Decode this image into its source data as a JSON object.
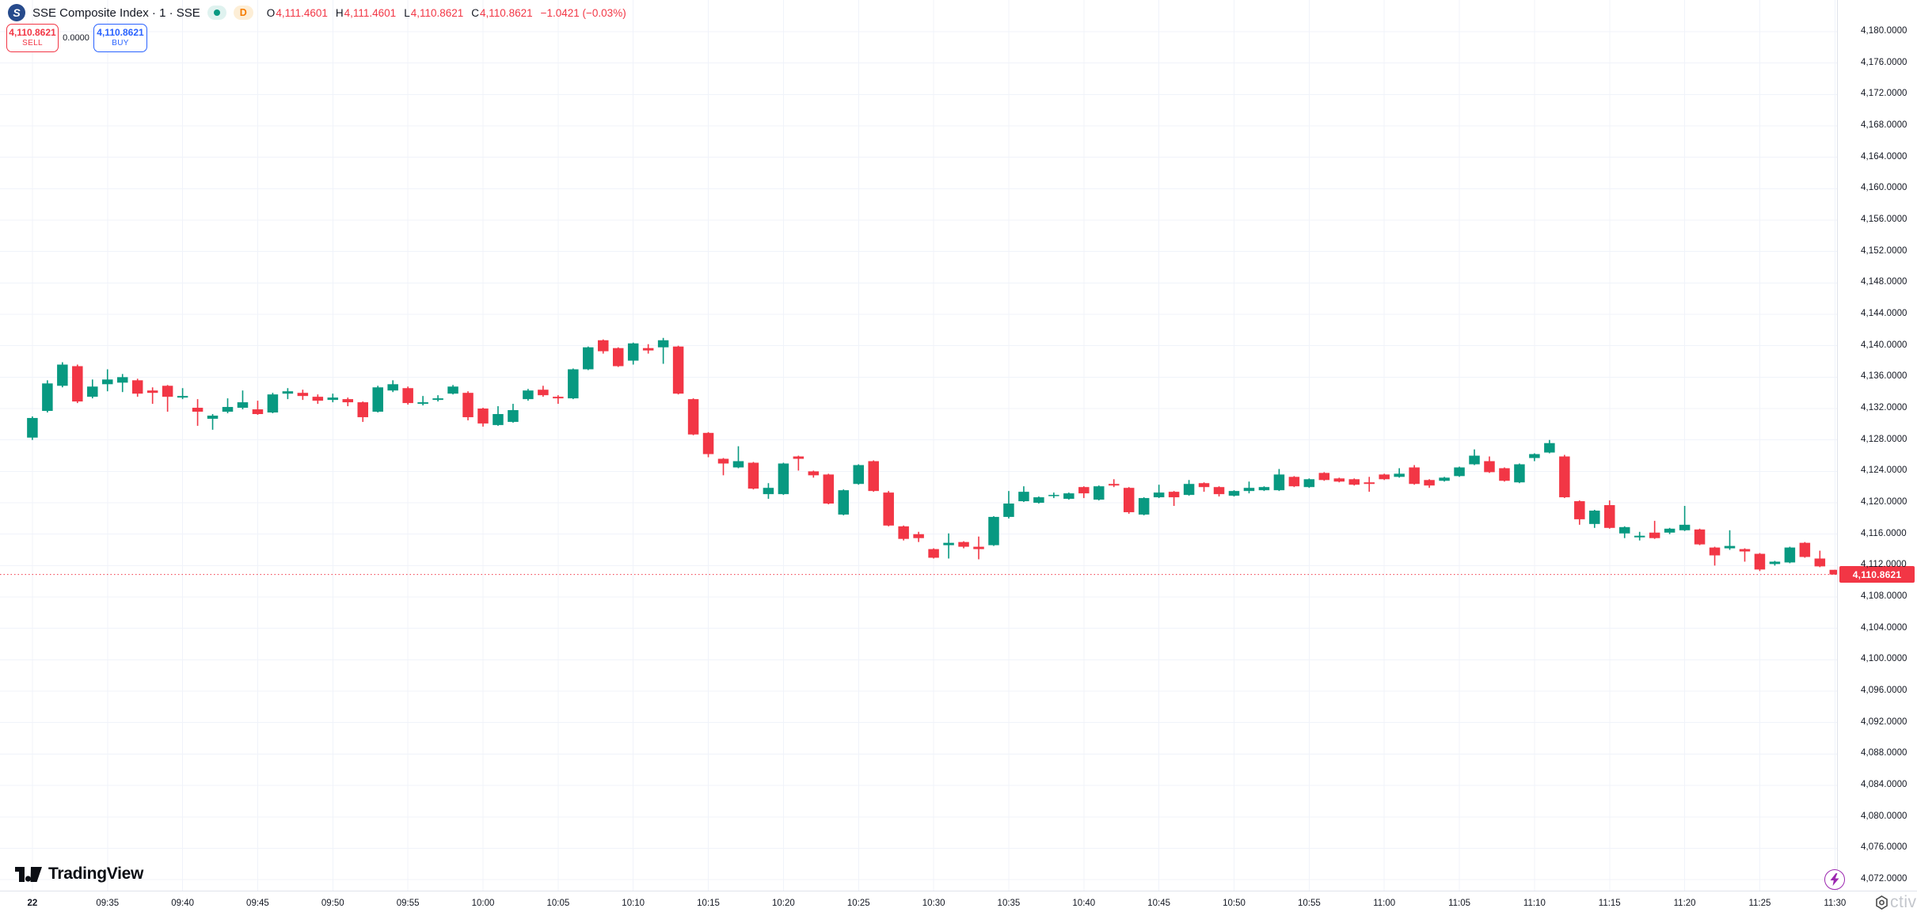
{
  "header": {
    "symbol_title": "SSE Composite Index · 1 · SSE",
    "logo_letter": "S",
    "timeframe_badge": "D",
    "ohlc": {
      "o_label": "O",
      "o_value": "4,111.4601",
      "h_label": "H",
      "h_value": "4,111.4601",
      "l_label": "L",
      "l_value": "4,110.8621",
      "c_label": "C",
      "c_value": "4,110.8621",
      "change_text": "−1.0421 (−0.03%)"
    }
  },
  "trade_panel": {
    "sell_price": "4,110.8621",
    "sell_label": "SELL",
    "spread": "0.0000",
    "buy_price": "4,110.8621",
    "buy_label": "BUY"
  },
  "brand": {
    "name": "TradingView"
  },
  "overlay_watermark_text": "ctiva",
  "colors": {
    "up": "#089981",
    "down": "#F23645",
    "grid": "#F0F3FA",
    "axis_border": "#E0E3EB",
    "axis_text": "#131722",
    "last_price_line": "#F23645",
    "buy_accent": "#2962FF",
    "quick_trade_icon": "#9C27B0"
  },
  "price_axis": {
    "labels": [
      "4,180.0000",
      "4,176.0000",
      "4,172.0000",
      "4,168.0000",
      "4,164.0000",
      "4,160.0000",
      "4,156.0000",
      "4,152.0000",
      "4,148.0000",
      "4,144.0000",
      "4,140.0000",
      "4,136.0000",
      "4,132.0000",
      "4,128.0000",
      "4,124.0000",
      "4,120.0000",
      "4,116.0000",
      "4,112.0000",
      "4,108.0000",
      "4,104.0000",
      "4,100.0000",
      "4,096.0000",
      "4,092.0000",
      "4,088.0000",
      "4,084.0000",
      "4,080.0000",
      "4,076.0000",
      "4,072.0000"
    ],
    "top_price": 4180,
    "step": 4,
    "last_price_tag": "4,110.8621"
  },
  "time_axis": {
    "ticks": [
      {
        "minute": 0,
        "label": "22",
        "strong": true
      },
      {
        "minute": 5,
        "label": "09:35"
      },
      {
        "minute": 10,
        "label": "09:40"
      },
      {
        "minute": 15,
        "label": "09:45"
      },
      {
        "minute": 20,
        "label": "09:50"
      },
      {
        "minute": 25,
        "label": "09:55"
      },
      {
        "minute": 30,
        "label": "10:00"
      },
      {
        "minute": 35,
        "label": "10:05"
      },
      {
        "minute": 40,
        "label": "10:10"
      },
      {
        "minute": 45,
        "label": "10:15"
      },
      {
        "minute": 50,
        "label": "10:20"
      },
      {
        "minute": 55,
        "label": "10:25"
      },
      {
        "minute": 60,
        "label": "10:30"
      },
      {
        "minute": 65,
        "label": "10:35"
      },
      {
        "minute": 70,
        "label": "10:40"
      },
      {
        "minute": 75,
        "label": "10:45"
      },
      {
        "minute": 80,
        "label": "10:50"
      },
      {
        "minute": 85,
        "label": "10:55"
      },
      {
        "minute": 90,
        "label": "11:00"
      },
      {
        "minute": 95,
        "label": "11:05"
      },
      {
        "minute": 100,
        "label": "11:10"
      },
      {
        "minute": 105,
        "label": "11:15"
      },
      {
        "minute": 110,
        "label": "11:20"
      },
      {
        "minute": 115,
        "label": "11:25"
      },
      {
        "minute": 120,
        "label": "11:30"
      }
    ]
  },
  "chart_data": {
    "type": "candlestick",
    "title": "SSE Composite Index",
    "interval": "1 minute",
    "exchange": "SSE",
    "start_time": "09:30",
    "interval_minutes": 1,
    "ylim": [
      4072,
      4180
    ],
    "grid": true,
    "last_price": 4110.8621,
    "ohlc_format": "[open, high, low, close]",
    "candles": [
      [
        4128.3,
        4131.0,
        4128.0,
        4130.8
      ],
      [
        4131.7,
        4135.6,
        4131.5,
        4135.2
      ],
      [
        4134.9,
        4137.9,
        4134.7,
        4137.6
      ],
      [
        4137.4,
        4137.6,
        4132.7,
        4132.9
      ],
      [
        4133.5,
        4135.7,
        4133.3,
        4134.8
      ],
      [
        4135.1,
        4137.0,
        4134.2,
        4135.7
      ],
      [
        4135.3,
        4136.4,
        4134.1,
        4136.0
      ],
      [
        4135.6,
        4135.8,
        4133.5,
        4133.9
      ],
      [
        4134.3,
        4134.7,
        4132.6,
        4134.0
      ],
      [
        4134.9,
        4135.0,
        4131.6,
        4133.5
      ],
      [
        4133.4,
        4134.6,
        4133.2,
        4133.6
      ],
      [
        4132.1,
        4133.2,
        4129.8,
        4131.6
      ],
      [
        4130.7,
        4131.3,
        4129.3,
        4131.1
      ],
      [
        4131.6,
        4133.3,
        4131.4,
        4132.2
      ],
      [
        4132.1,
        4134.3,
        4131.9,
        4132.8
      ],
      [
        4131.9,
        4133.0,
        4131.2,
        4131.3
      ],
      [
        4131.5,
        4134.0,
        4131.4,
        4133.8
      ],
      [
        4133.9,
        4134.6,
        4133.2,
        4134.2
      ],
      [
        4134.0,
        4134.4,
        4133.1,
        4133.6
      ],
      [
        4133.5,
        4133.8,
        4132.6,
        4133.0
      ],
      [
        4133.1,
        4133.9,
        4132.8,
        4133.4
      ],
      [
        4133.2,
        4133.4,
        4132.3,
        4132.8
      ],
      [
        4132.8,
        4132.9,
        4130.3,
        4130.9
      ],
      [
        4131.6,
        4134.9,
        4131.5,
        4134.7
      ],
      [
        4134.3,
        4135.6,
        4134.1,
        4135.1
      ],
      [
        4134.6,
        4134.8,
        4132.5,
        4132.7
      ],
      [
        4132.6,
        4133.6,
        4132.4,
        4132.8
      ],
      [
        4133.1,
        4133.7,
        4132.9,
        4133.3
      ],
      [
        4133.9,
        4135.0,
        4133.8,
        4134.8
      ],
      [
        4134.0,
        4134.2,
        4130.5,
        4130.9
      ],
      [
        4132.0,
        4132.1,
        4129.7,
        4130.1
      ],
      [
        4129.9,
        4132.3,
        4129.8,
        4131.3
      ],
      [
        4130.3,
        4132.6,
        4130.2,
        4131.8
      ],
      [
        4133.2,
        4134.5,
        4133.0,
        4134.3
      ],
      [
        4134.4,
        4134.9,
        4133.5,
        4133.7
      ],
      [
        4133.5,
        4133.7,
        4132.6,
        4133.3
      ],
      [
        4133.3,
        4137.1,
        4133.2,
        4137.0
      ],
      [
        4137.0,
        4139.9,
        4136.9,
        4139.8
      ],
      [
        4140.7,
        4140.8,
        4139.0,
        4139.3
      ],
      [
        4139.7,
        4139.8,
        4137.3,
        4137.4
      ],
      [
        4138.1,
        4140.4,
        4137.6,
        4140.3
      ],
      [
        4139.7,
        4140.2,
        4139.0,
        4139.4
      ],
      [
        4139.8,
        4141.0,
        4137.7,
        4140.7
      ],
      [
        4139.9,
        4140.0,
        4133.8,
        4133.9
      ],
      [
        4133.2,
        4133.3,
        4128.6,
        4128.7
      ],
      [
        4128.9,
        4129.0,
        4125.8,
        4126.2
      ],
      [
        4125.6,
        4125.7,
        4123.5,
        4125.0
      ],
      [
        4124.5,
        4127.2,
        4124.4,
        4125.3
      ],
      [
        4125.1,
        4125.2,
        4121.7,
        4121.8
      ],
      [
        4121.1,
        4122.5,
        4120.5,
        4121.9
      ],
      [
        4121.1,
        4125.1,
        4121.0,
        4125.0
      ],
      [
        4125.9,
        4126.0,
        4124.1,
        4125.6
      ],
      [
        4124.0,
        4124.1,
        4123.2,
        4123.5
      ],
      [
        4123.6,
        4123.7,
        4119.8,
        4119.9
      ],
      [
        4118.5,
        4121.7,
        4118.4,
        4121.6
      ],
      [
        4122.4,
        4124.9,
        4122.3,
        4124.8
      ],
      [
        4125.3,
        4125.4,
        4121.4,
        4121.5
      ],
      [
        4121.3,
        4121.5,
        4117.0,
        4117.1
      ],
      [
        4117.0,
        4117.1,
        4115.2,
        4115.4
      ],
      [
        4116.0,
        4116.3,
        4115.0,
        4115.5
      ],
      [
        4114.1,
        4114.2,
        4112.9,
        4113.0
      ],
      [
        4114.6,
        4116.1,
        4112.9,
        4114.9
      ],
      [
        4115.0,
        4115.1,
        4114.2,
        4114.4
      ],
      [
        4114.4,
        4115.7,
        4112.8,
        4114.1
      ],
      [
        4114.6,
        4118.3,
        4114.5,
        4118.2
      ],
      [
        4118.2,
        4121.5,
        4118.0,
        4119.9
      ],
      [
        4120.2,
        4122.1,
        4120.1,
        4121.4
      ],
      [
        4120.0,
        4120.8,
        4119.9,
        4120.7
      ],
      [
        4120.9,
        4121.3,
        4120.6,
        4121.0
      ],
      [
        4120.5,
        4121.3,
        4120.4,
        4121.2
      ],
      [
        4122.0,
        4122.1,
        4120.6,
        4121.2
      ],
      [
        4120.4,
        4122.2,
        4120.3,
        4122.1
      ],
      [
        4122.4,
        4123.0,
        4122.0,
        4122.2
      ],
      [
        4121.9,
        4122.0,
        4118.6,
        4118.8
      ],
      [
        4118.5,
        4120.7,
        4118.4,
        4120.6
      ],
      [
        4120.7,
        4122.3,
        4120.6,
        4121.3
      ],
      [
        4121.4,
        4121.5,
        4119.6,
        4120.7
      ],
      [
        4121.0,
        4122.9,
        4120.9,
        4122.4
      ],
      [
        4122.5,
        4122.6,
        4121.4,
        4122.0
      ],
      [
        4122.0,
        4122.1,
        4120.8,
        4121.1
      ],
      [
        4120.9,
        4121.6,
        4120.8,
        4121.5
      ],
      [
        4121.5,
        4122.7,
        4121.2,
        4121.9
      ],
      [
        4121.6,
        4122.1,
        4121.5,
        4122.0
      ],
      [
        4121.6,
        4124.3,
        4121.5,
        4123.6
      ],
      [
        4123.3,
        4123.4,
        4122.0,
        4122.1
      ],
      [
        4122.0,
        4123.1,
        4121.9,
        4123.0
      ],
      [
        4123.8,
        4123.9,
        4122.8,
        4122.9
      ],
      [
        4123.1,
        4123.2,
        4122.6,
        4122.7
      ],
      [
        4123.0,
        4123.1,
        4122.2,
        4122.3
      ],
      [
        4122.6,
        4123.3,
        4121.4,
        4122.4
      ],
      [
        4123.6,
        4123.7,
        4122.9,
        4123.0
      ],
      [
        4123.3,
        4124.4,
        4123.2,
        4123.7
      ],
      [
        4124.5,
        4124.8,
        4122.3,
        4122.4
      ],
      [
        4122.9,
        4123.0,
        4121.9,
        4122.2
      ],
      [
        4122.8,
        4123.3,
        4122.7,
        4123.2
      ],
      [
        4123.4,
        4124.6,
        4123.3,
        4124.5
      ],
      [
        4124.9,
        4126.8,
        4124.8,
        4126.0
      ],
      [
        4125.3,
        4125.9,
        4123.8,
        4123.9
      ],
      [
        4124.4,
        4124.5,
        4122.7,
        4122.8
      ],
      [
        4122.6,
        4125.0,
        4122.5,
        4124.9
      ],
      [
        4125.7,
        4126.3,
        4125.3,
        4126.2
      ],
      [
        4126.4,
        4128.0,
        4126.3,
        4127.6
      ],
      [
        4125.9,
        4126.1,
        4120.6,
        4120.7
      ],
      [
        4120.2,
        4120.3,
        4117.2,
        4117.9
      ],
      [
        4117.3,
        4119.1,
        4116.8,
        4119.0
      ],
      [
        4119.7,
        4120.3,
        4116.7,
        4116.8
      ],
      [
        4116.1,
        4117.0,
        4115.5,
        4116.9
      ],
      [
        4115.6,
        4116.3,
        4115.2,
        4115.8
      ],
      [
        4116.2,
        4117.7,
        4115.4,
        4115.5
      ],
      [
        4116.2,
        4116.8,
        4116.0,
        4116.7
      ],
      [
        4116.5,
        4119.6,
        4116.4,
        4117.2
      ],
      [
        4116.6,
        4116.7,
        4114.6,
        4114.7
      ],
      [
        4114.3,
        4114.4,
        4112.0,
        4113.3
      ],
      [
        4114.2,
        4116.5,
        4114.0,
        4114.5
      ],
      [
        4114.1,
        4114.2,
        4112.5,
        4113.8
      ],
      [
        4113.5,
        4113.6,
        4111.3,
        4111.5
      ],
      [
        4112.2,
        4112.6,
        4112.0,
        4112.5
      ],
      [
        4112.4,
        4114.4,
        4112.3,
        4114.3
      ],
      [
        4114.9,
        4115.0,
        4113.0,
        4113.1
      ],
      [
        4112.9,
        4113.9,
        4111.8,
        4111.9
      ],
      [
        4111.4601,
        4111.4601,
        4110.8621,
        4110.8621
      ]
    ]
  }
}
